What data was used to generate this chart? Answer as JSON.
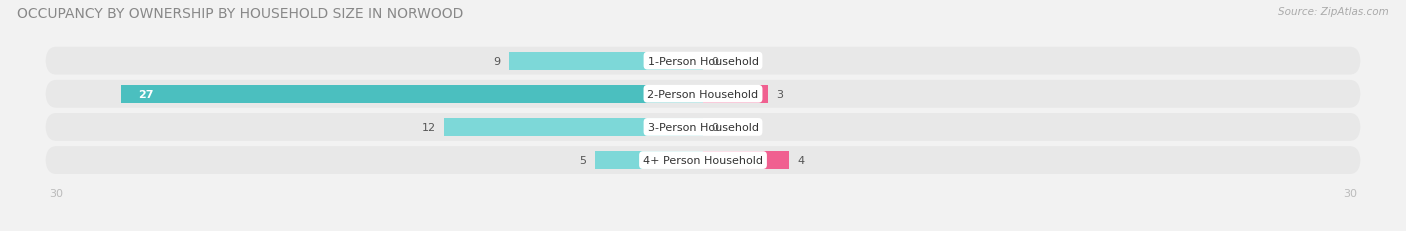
{
  "title": "OCCUPANCY BY OWNERSHIP BY HOUSEHOLD SIZE IN NORWOOD",
  "source": "Source: ZipAtlas.com",
  "categories": [
    "1-Person Household",
    "2-Person Household",
    "3-Person Household",
    "4+ Person Household"
  ],
  "owner_values": [
    9,
    27,
    12,
    5
  ],
  "renter_values": [
    0,
    3,
    0,
    4
  ],
  "owner_color": "#4BBFBF",
  "renter_color": "#F06090",
  "owner_color_light": "#7DD8D8",
  "renter_color_light": "#F8A0B8",
  "axis_limit": 30,
  "bar_height": 0.55,
  "background_color": "#f2f2f2",
  "row_bg_odd": "#e8e8e8",
  "row_bg_even": "#e0e0e0",
  "center_label_bg": "#ffffff",
  "title_fontsize": 10,
  "source_fontsize": 7.5,
  "tick_fontsize": 8,
  "legend_fontsize": 8,
  "value_fontsize": 8
}
